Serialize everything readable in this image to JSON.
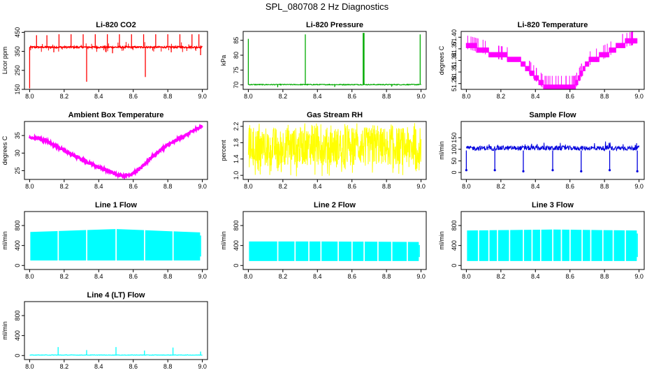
{
  "figure": {
    "title": "SPL_080708  2 Hz Diagnostics"
  },
  "chart_data": [
    {
      "type": "line",
      "title": "Li-820 CO2",
      "ylabel": "Licor ppm",
      "xlim": [
        7.97,
        9.03
      ],
      "xticks": [
        "8.0",
        "8.2",
        "8.4",
        "8.6",
        "8.8",
        "9.0"
      ],
      "ylim": [
        150,
        455
      ],
      "yticks": [
        "150",
        "250",
        "350",
        "450"
      ],
      "color": "#ff0000",
      "style": "co2",
      "series": [
        {
          "x": [
            8.0,
            9.0
          ],
          "values": [
            372,
            372
          ]
        }
      ],
      "spikes_up": [
        [
          8.04,
          435
        ],
        [
          8.1,
          435
        ],
        [
          8.17,
          440
        ],
        [
          8.24,
          440
        ],
        [
          8.31,
          440
        ],
        [
          8.38,
          440
        ],
        [
          8.45,
          440
        ],
        [
          8.52,
          440
        ],
        [
          8.59,
          440
        ],
        [
          8.66,
          440
        ],
        [
          8.73,
          440
        ],
        [
          8.8,
          440
        ],
        [
          8.87,
          440
        ],
        [
          8.94,
          440
        ],
        [
          8.98,
          440
        ]
      ],
      "spikes_down": [
        [
          8.0,
          155
        ],
        [
          8.33,
          190
        ],
        [
          8.67,
          215
        ],
        [
          8.14,
          345
        ],
        [
          8.48,
          340
        ],
        [
          8.82,
          345
        ],
        [
          8.99,
          330
        ]
      ]
    },
    {
      "type": "line",
      "title": "Li-820 Pressure",
      "ylabel": "kPa",
      "xlim": [
        7.97,
        9.03
      ],
      "xticks": [
        "8.0",
        "8.2",
        "8.4",
        "8.6",
        "8.8",
        "9.0"
      ],
      "ylim": [
        68.5,
        88
      ],
      "yticks": [
        "70",
        "75",
        "80",
        "85"
      ],
      "color": "#00aa00",
      "style": "pressure",
      "series": [
        {
          "x": [
            8.0,
            9.0
          ],
          "values": [
            70.1,
            70.1
          ]
        }
      ],
      "spikes_up": [
        [
          8.0,
          85.5
        ],
        [
          8.33,
          87
        ],
        [
          8.665,
          87.5
        ],
        [
          8.67,
          87.5
        ],
        [
          8.995,
          87
        ]
      ],
      "spikes_down": [
        [
          8.17,
          69.2
        ],
        [
          8.5,
          69.3
        ],
        [
          8.83,
          69.4
        ]
      ]
    },
    {
      "type": "line",
      "title": "Li-820 Temperature",
      "ylabel": "degrees C",
      "xlim": [
        7.97,
        9.03
      ],
      "xticks": [
        "8.0",
        "8.2",
        "8.4",
        "8.6",
        "8.8",
        "9.0"
      ],
      "ylim": [
        51.265,
        51.415
      ],
      "yticks": [
        "51.28",
        "51.34",
        "51.40"
      ],
      "ytick_values": [
        51.28,
        51.34,
        51.4
      ],
      "minor_ytick_values": [
        51.31,
        51.37
      ],
      "minor_yticks": [
        "51.31",
        "51.37"
      ],
      "color": "#ff00ff",
      "style": "temperature",
      "series": [
        {
          "x": [
            8.0,
            8.1,
            8.15,
            8.3,
            8.45,
            8.63,
            8.7,
            8.82,
            8.9,
            8.99
          ],
          "values": [
            51.385,
            51.373,
            51.361,
            51.349,
            51.28,
            51.28,
            51.34,
            51.364,
            51.388,
            51.397
          ]
        }
      ]
    },
    {
      "type": "line",
      "title": "Ambient Box Temperature",
      "ylabel": "degrees C",
      "xlim": [
        7.97,
        9.03
      ],
      "xticks": [
        "8.0",
        "8.2",
        "8.4",
        "8.6",
        "8.8",
        "9.0"
      ],
      "ylim": [
        22.5,
        39
      ],
      "yticks": [
        "25",
        "30",
        "35"
      ],
      "color": "#ff00ff",
      "style": "thickline",
      "series": [
        {
          "x": [
            8.0,
            8.05,
            8.1,
            8.2,
            8.3,
            8.4,
            8.5,
            8.55,
            8.6,
            8.65,
            8.7,
            8.75,
            8.8,
            8.9,
            9.0
          ],
          "values": [
            34.3,
            34.2,
            33.4,
            30.7,
            28.2,
            26.0,
            24.0,
            23.5,
            24.2,
            26.0,
            28.6,
            30.6,
            32.3,
            35.0,
            37.8
          ]
        }
      ]
    },
    {
      "type": "line",
      "title": "Gas Stream RH",
      "ylabel": "percent",
      "xlim": [
        7.97,
        9.03
      ],
      "xticks": [
        "8.0",
        "8.2",
        "8.4",
        "8.6",
        "8.8",
        "9.0"
      ],
      "ylim": [
        0.9,
        2.32
      ],
      "yticks": [
        "1.0",
        "1.4",
        "1.8",
        "2.2"
      ],
      "color": "#ffff00",
      "style": "noiseband",
      "band": {
        "low": 1.25,
        "high": 2.18,
        "min": 0.97,
        "max": 2.28
      }
    },
    {
      "type": "line",
      "title": "Sample Flow",
      "ylabel": "ml/min",
      "xlim": [
        7.97,
        9.03
      ],
      "xticks": [
        "8.0",
        "8.2",
        "8.4",
        "8.6",
        "8.8",
        "9.0"
      ],
      "ylim": [
        -30,
        220
      ],
      "yticks": [
        "0",
        "50",
        "100",
        "150"
      ],
      "color": "#0000dd",
      "style": "flowdips",
      "band": {
        "low": 95,
        "high": 115
      },
      "dips": [
        [
          8.0,
          10
        ],
        [
          8.165,
          10
        ],
        [
          8.33,
          5
        ],
        [
          8.5,
          10
        ],
        [
          8.665,
          5
        ],
        [
          8.83,
          10
        ],
        [
          8.99,
          5
        ]
      ]
    },
    {
      "type": "area",
      "title": "Line 1 Flow",
      "ylabel": "ml/min",
      "xlim": [
        7.97,
        9.03
      ],
      "xticks": [
        "8.0",
        "8.2",
        "8.4",
        "8.6",
        "8.8",
        "9.0"
      ],
      "ylim": [
        -80,
        1080
      ],
      "yticks": [
        "0",
        "400",
        "800"
      ],
      "color": "#00ffff",
      "style": "flowband",
      "band": {
        "low": 100,
        "high_start": 670,
        "high_end": 660,
        "high_peak": 730
      },
      "gaps": [
        8.165,
        8.33,
        8.5,
        8.665,
        8.83
      ]
    },
    {
      "type": "area",
      "title": "Line 2 Flow",
      "ylabel": "ml/min",
      "xlim": [
        7.97,
        9.03
      ],
      "xticks": [
        "8.0",
        "8.2",
        "8.4",
        "8.6",
        "8.8",
        "9.0"
      ],
      "ylim": [
        -80,
        1080
      ],
      "yticks": [
        "0",
        "400",
        "800"
      ],
      "color": "#00ffff",
      "style": "flowband",
      "band": {
        "low": 90,
        "high_start": 480,
        "high_end": 470,
        "high_peak": 480
      },
      "gaps": [
        8.17,
        8.27,
        8.35,
        8.42,
        8.52,
        8.6,
        8.67,
        8.75,
        8.83,
        8.92
      ]
    },
    {
      "type": "area",
      "title": "Line 3 Flow",
      "ylabel": "ml/min",
      "xlim": [
        7.97,
        9.03
      ],
      "xticks": [
        "8.0",
        "8.2",
        "8.4",
        "8.6",
        "8.8",
        "9.0"
      ],
      "ylim": [
        -80,
        1080
      ],
      "yticks": [
        "0",
        "400",
        "800"
      ],
      "color": "#00ffff",
      "style": "flowband",
      "band": {
        "low": 90,
        "high_start": 700,
        "high_end": 700,
        "high_peak": 720
      },
      "gaps": [
        8.07,
        8.13,
        8.18,
        8.25,
        8.33,
        8.38,
        8.43,
        8.5,
        8.55,
        8.6,
        8.67,
        8.72,
        8.79,
        8.85,
        8.92
      ]
    },
    {
      "type": "line",
      "title": "Line 4 (LT) Flow",
      "ylabel": "ml/min",
      "xlim": [
        7.97,
        9.03
      ],
      "xticks": [
        "8.0",
        "8.2",
        "8.4",
        "8.6",
        "8.8",
        "9.0"
      ],
      "ylim": [
        -80,
        1080
      ],
      "yticks": [
        "0",
        "400",
        "800"
      ],
      "color": "#00ffff",
      "style": "flatspikes",
      "series": [
        {
          "x": [
            8.0,
            9.0
          ],
          "values": [
            10,
            10
          ]
        }
      ],
      "spikes_up": [
        [
          8.165,
          170
        ],
        [
          8.33,
          110
        ],
        [
          8.5,
          170
        ],
        [
          8.665,
          100
        ],
        [
          8.83,
          160
        ],
        [
          8.99,
          80
        ]
      ]
    }
  ]
}
